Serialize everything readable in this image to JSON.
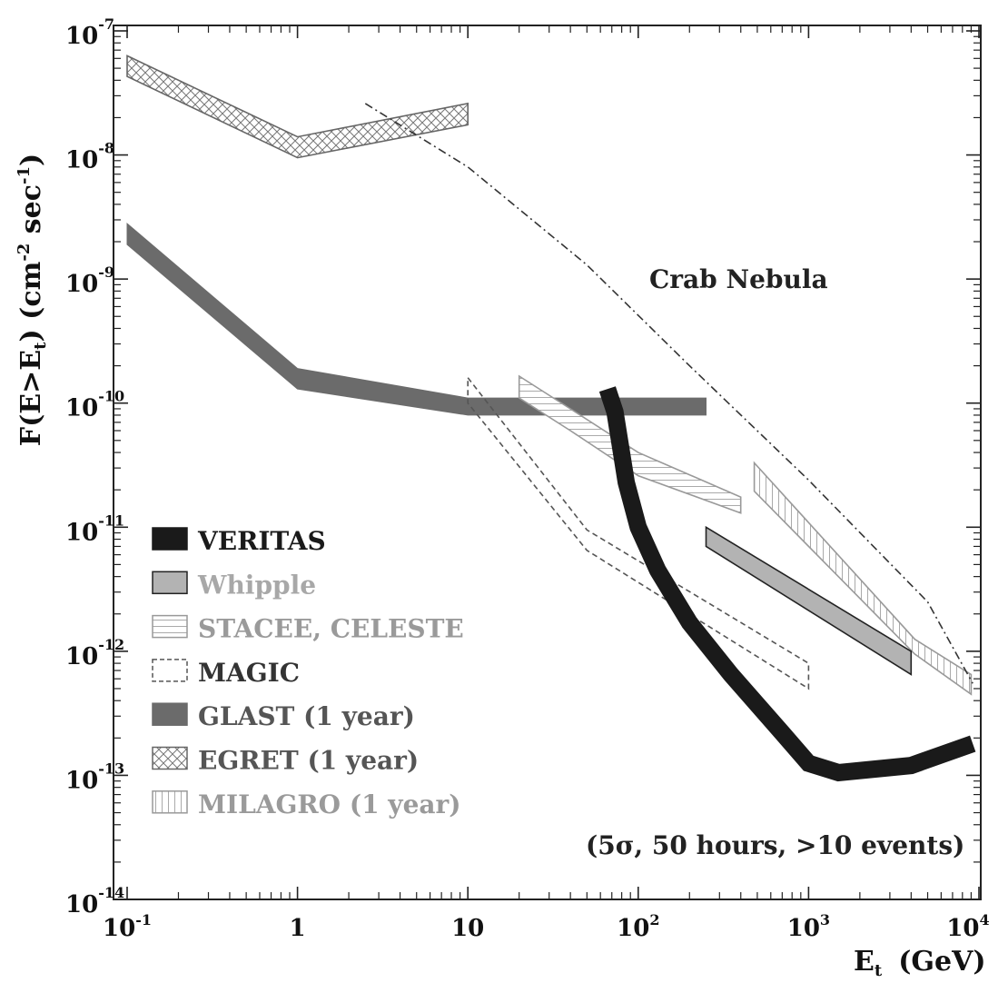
{
  "chart_data": {
    "type": "line",
    "title": "",
    "xlabel": {
      "base": "E",
      "sub": "t",
      "unit": "(GeV)"
    },
    "ylabel": {
      "prefix": "F(E>E",
      "sub": "t",
      "mid": ") (cm",
      "sup1": "-2",
      "mid2": " sec",
      "sup2": "-1",
      "suffix": ")"
    },
    "xscale": "log",
    "yscale": "log",
    "xlim": [
      0.1,
      10000
    ],
    "ylim": [
      1e-14,
      1e-07
    ],
    "x_ticks": [
      {
        "value": 0.1,
        "base": "10",
        "exp": "-1"
      },
      {
        "value": 1,
        "base": "1",
        "exp": ""
      },
      {
        "value": 10,
        "base": "10",
        "exp": ""
      },
      {
        "value": 100,
        "base": "10",
        "exp": "2"
      },
      {
        "value": 1000,
        "base": "10",
        "exp": "3"
      },
      {
        "value": 10000,
        "base": "10",
        "exp": "4"
      }
    ],
    "y_ticks": [
      {
        "value": 1e-07,
        "base": "10",
        "exp": "-7"
      },
      {
        "value": 1e-08,
        "base": "10",
        "exp": "-8"
      },
      {
        "value": 1e-09,
        "base": "10",
        "exp": "-9"
      },
      {
        "value": 1e-10,
        "base": "10",
        "exp": "-10"
      },
      {
        "value": 1e-11,
        "base": "10",
        "exp": "-11"
      },
      {
        "value": 1e-12,
        "base": "10",
        "exp": "-12"
      },
      {
        "value": 1e-13,
        "base": "10",
        "exp": "-13"
      },
      {
        "value": 1e-14,
        "base": "10",
        "exp": "-14"
      }
    ],
    "series": [
      {
        "name": "EGRET",
        "suffix": " (1 year)",
        "style": "crosshatch",
        "color": "#555555",
        "text_color": "#555555",
        "band": {
          "x": [
            0.1,
            1,
            10
          ],
          "upper": [
            6.3e-08,
            1.4e-08,
            2.6e-08
          ],
          "lower": [
            4.3e-08,
            9.5e-09,
            1.75e-08
          ]
        }
      },
      {
        "name": "GLAST",
        "suffix": " (1 year)",
        "style": "filled",
        "color": "#6b6b6b",
        "text_color": "#555555",
        "band": {
          "x": [
            0.1,
            1,
            10,
            250
          ],
          "upper": [
            2.8e-09,
            1.9e-10,
            1.1e-10,
            1.1e-10
          ],
          "lower": [
            1.9e-09,
            1.3e-10,
            8e-11,
            8e-11
          ]
        }
      },
      {
        "name": "STACEE, CELESTE",
        "suffix": "",
        "style": "hlines",
        "color": "#9a9a9a",
        "text_color": "#9a9a9a",
        "band": {
          "x": [
            20,
            40,
            100,
            400
          ],
          "upper": [
            1.65e-10,
            9e-11,
            4e-11,
            1.75e-11
          ],
          "lower": [
            1.1e-10,
            6e-11,
            2.6e-11,
            1.3e-11
          ]
        }
      },
      {
        "name": "MAGIC",
        "suffix": "",
        "style": "dashed",
        "color": "#555555",
        "text_color": "#333333",
        "band": {
          "x": [
            10,
            50,
            1000
          ],
          "upper": [
            1.6e-10,
            9.5e-12,
            8e-13
          ],
          "lower": [
            1e-10,
            6.5e-12,
            5e-13
          ]
        }
      },
      {
        "name": "MILAGRO",
        "suffix": " (1 year)",
        "style": "vlines",
        "color": "#9a9a9a",
        "text_color": "#9a9a9a",
        "band": {
          "x": [
            480,
            4200,
            9000
          ],
          "upper": [
            3.3e-11,
            1.25e-12,
            6.5e-13
          ],
          "lower": [
            1.95e-11,
            9.5e-13,
            4.5e-13
          ]
        }
      },
      {
        "name": "Whipple",
        "suffix": "",
        "style": "lightfill",
        "color": "#b3b3b3",
        "text_color": "#a8a8a8",
        "band": {
          "x": [
            250,
            4000
          ],
          "upper": [
            1e-11,
            1e-12
          ],
          "lower": [
            7e-12,
            6.5e-13
          ]
        }
      },
      {
        "name": "VERITAS",
        "suffix": "",
        "style": "thick",
        "color": "#1a1a1a",
        "text_color": "#1a1a1a",
        "points": {
          "x": [
            66,
            73,
            85,
            100,
            130,
            200,
            350,
            700,
            1000,
            1500,
            4000,
            9200
          ],
          "y": [
            1.3e-10,
            8.5e-11,
            2.3e-11,
            1e-11,
            4.5e-12,
            1.7e-12,
            6.5e-13,
            2.2e-13,
            1.25e-13,
            1.05e-13,
            1.2e-13,
            1.8e-13
          ]
        }
      }
    ],
    "legend_order": [
      "VERITAS",
      "Whipple",
      "STACEE, CELESTE",
      "MAGIC",
      "GLAST",
      "EGRET",
      "MILAGRO"
    ],
    "legend_position": "bottom-left",
    "reference_curve": {
      "name": "Crab Nebula",
      "style": "dash-dot",
      "x": [
        2.5,
        10,
        50,
        200,
        1000,
        5000,
        9200
      ],
      "y": [
        2.6e-08,
        8e-09,
        1.3e-09,
        2e-10,
        2.4e-11,
        2.5e-12,
        5.5e-13
      ]
    },
    "annotations": {
      "crab_label": "Crab Nebula",
      "conditions": "(5σ, 50 hours, >10 events)"
    }
  }
}
